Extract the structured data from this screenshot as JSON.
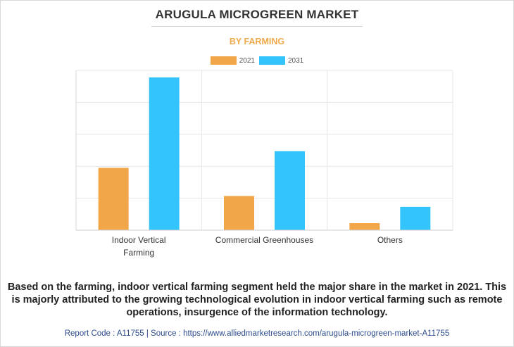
{
  "chart_data": {
    "type": "bar",
    "title": "ARUGULA MICROGREEN MARKET",
    "subtitle": "BY FARMING",
    "categories": [
      "Indoor Vertical Farming",
      "Commercial Greenhouses",
      "Others"
    ],
    "category_lines": [
      [
        "Indoor Vertical",
        "Farming"
      ],
      [
        "Commercial Greenhouses"
      ],
      [
        "Others"
      ]
    ],
    "series": [
      {
        "name": "2021",
        "color": "#f2a64a",
        "values": [
          1.95,
          1.07,
          0.22
        ]
      },
      {
        "name": "2031",
        "color": "#33c4fb",
        "values": [
          4.78,
          2.47,
          0.73
        ]
      }
    ],
    "ylim": [
      0,
      5
    ],
    "y_gridlines": [
      1,
      2,
      3,
      4,
      5
    ],
    "y_tick_labels_shown": false,
    "grid": true,
    "legend_position": "top-center",
    "xlabel": "",
    "ylabel": ""
  },
  "caption": "Based on the farming, indoor vertical farming segment held the major share in the market in 2021. This is majorly attributed to the growing technological evolution in indoor vertical farming such as remote operations, insurgence of the information technology.",
  "footer": "Report Code : A11755  |  Source : https://www.alliedmarketresearch.com/arugula-microgreen-market-A11755"
}
